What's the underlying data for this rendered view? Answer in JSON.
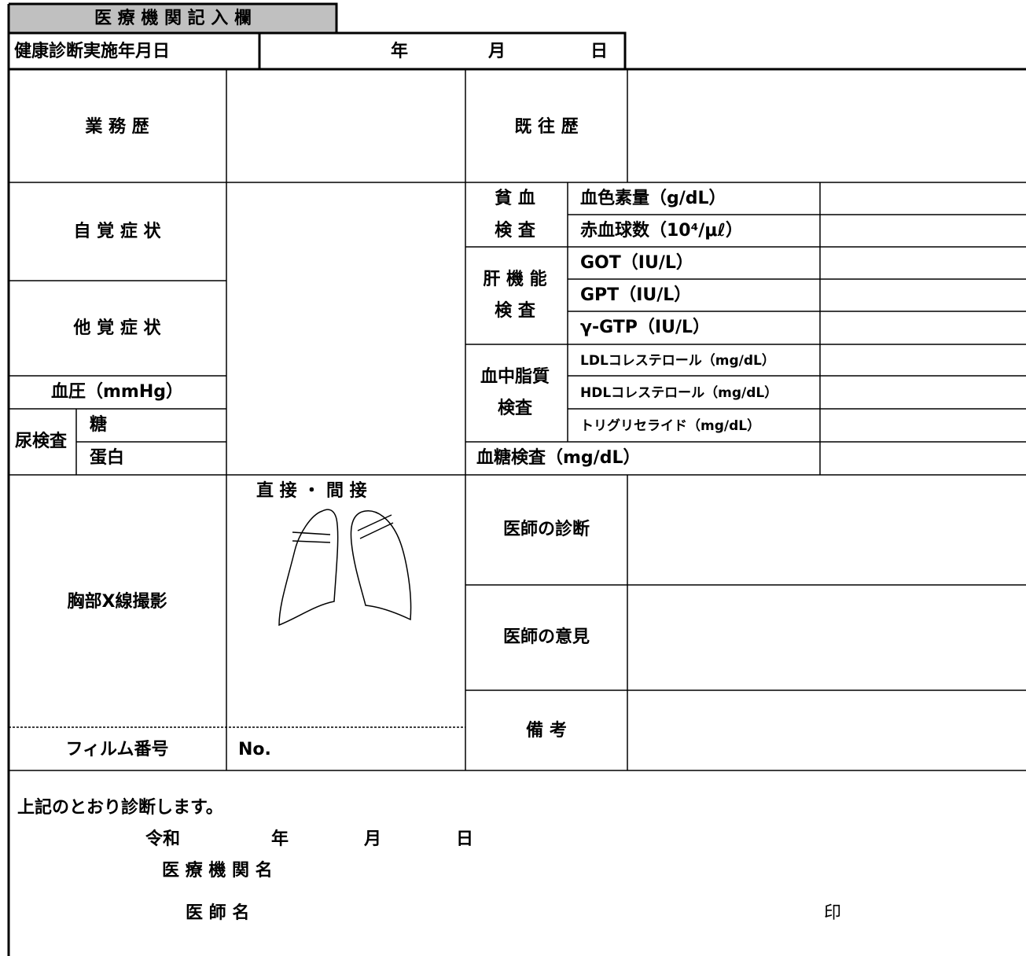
{
  "header": {
    "title": "医 療 機 関 記 入 欄"
  },
  "exam_date": {
    "label": "健康診断実施年月日",
    "year": "年",
    "month": "月",
    "day": "日"
  },
  "work_history": "業 務 歴",
  "past_history": "既 往 歴",
  "subjective_symptoms": "自 覚 症 状",
  "objective_symptoms": "他 覚 症 状",
  "blood_pressure": "血圧（mmHg）",
  "urine": {
    "label": "尿検査",
    "sugar": "糖",
    "protein": "蛋白"
  },
  "anemia": {
    "label": [
      "貧 血",
      "検 査"
    ],
    "items": [
      "血色素量（g/dL）",
      "赤血球数（10⁴/μℓ）"
    ]
  },
  "liver": {
    "label": [
      "肝 機 能",
      "検 査"
    ],
    "items": [
      "GOT（IU/L）",
      "GPT（IU/L）",
      "γ-GTP（IU/L）"
    ]
  },
  "lipid": {
    "label": [
      "血中脂質",
      "検査"
    ],
    "items": [
      "LDLコレステロール（mg/dL）",
      "HDLコレステロール（mg/dL）",
      "トリグリセライド（mg/dL）"
    ]
  },
  "blood_sugar": "血糖検査（mg/dL）",
  "chest_xray": {
    "label": "胸部X線撮影",
    "method": "直 接 ・ 間 接",
    "film_label": "フィルム番号",
    "film_no": "No."
  },
  "doctor_diagnosis": "医師の診断",
  "doctor_opinion": "医師の意見",
  "remarks": "備 考",
  "footer": {
    "statement": "上記のとおり診断します。",
    "era": "令和",
    "year": "年",
    "month": "月",
    "day": "日",
    "institution": "医 療 機 関 名",
    "doctor": "医 師 名",
    "seal": "印"
  }
}
